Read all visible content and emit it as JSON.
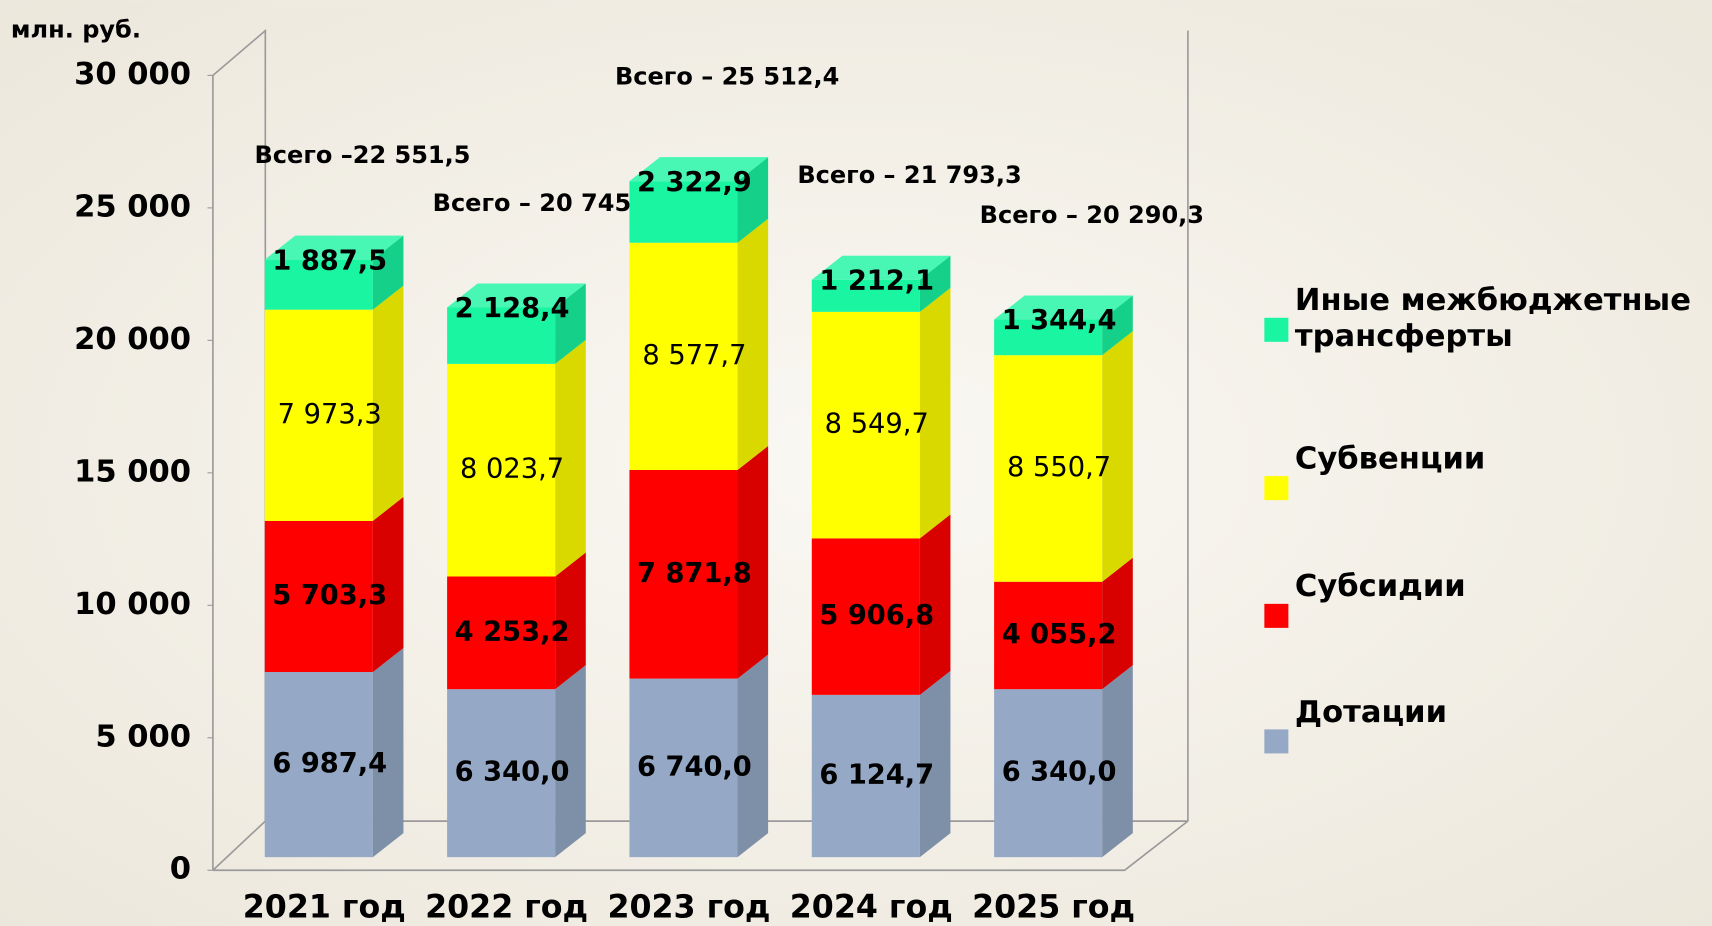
{
  "chart_data": {
    "type": "bar",
    "stacked": true,
    "three_d": true,
    "y_label": "млн. руб.",
    "categories": [
      "2021 год",
      "2022 год",
      "2023 год",
      "2024 год",
      "2025 год"
    ],
    "series": [
      {
        "name": "Дотации",
        "color": "#95a8c6",
        "values": [
          6987.4,
          6340.0,
          6740.0,
          6124.7,
          6340.0
        ],
        "value_labels": [
          "6 987,4",
          "6 340,0",
          "6 740,0",
          "6 124,7",
          "6 340,0"
        ]
      },
      {
        "name": "Субсидии",
        "color": "#ff0000",
        "values": [
          5703.3,
          4253.2,
          7871.8,
          5906.8,
          4055.2
        ],
        "value_labels": [
          "5 703,3",
          "4 253,2",
          "7 871,8",
          "5 906,8",
          "4 055,2"
        ]
      },
      {
        "name": "Субвенции",
        "color": "#ffff00",
        "values": [
          7973.3,
          8023.7,
          8577.7,
          8549.7,
          8550.7
        ],
        "value_labels": [
          "7 973,3",
          "8 023,7",
          "8 577,7",
          "8 549,7",
          "8 550,7"
        ]
      },
      {
        "name": "Иные межбюджетные трансферты",
        "color": "#19f5a0",
        "values": [
          1887.5,
          2128.4,
          2322.9,
          1212.1,
          1344.4
        ],
        "value_labels": [
          "1 887,5",
          "2 128,4",
          "2 322,9",
          "1 212,1",
          "1 344,4"
        ]
      }
    ],
    "annotations": [
      "Всего –22 551,5",
      "Всего – 20 745,3",
      "Всего – 25 512,4",
      "Всего – 21 793,3",
      "Всего – 20 290,3"
    ],
    "ylim": [
      0,
      30000
    ],
    "yticks": [
      0,
      {
        "value": 5000,
        "label": "5 000"
      },
      {
        "value": 10000,
        "label": "10 000"
      },
      {
        "value": 15000,
        "label": "15 000"
      },
      {
        "value": 20000,
        "label": "20 000"
      },
      {
        "value": 25000,
        "label": "25 000"
      },
      {
        "value": 30000,
        "label": "30 000"
      }
    ],
    "legend": "right",
    "grid": false
  }
}
